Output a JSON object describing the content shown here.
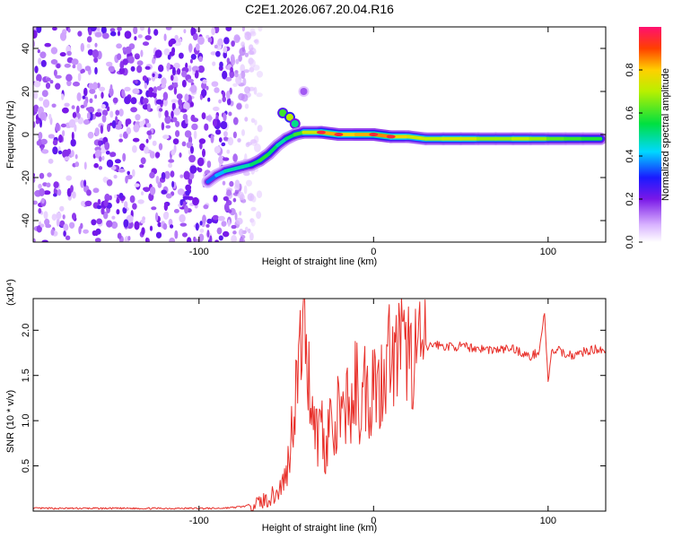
{
  "chart_data": [
    {
      "type": "heatmap",
      "title": "C2E1.2026.067.20.04.R16",
      "xlabel": "Height of straight line (km)",
      "ylabel": "Frequency (Hz)",
      "xlim": [
        -195,
        133
      ],
      "ylim": [
        -50,
        50
      ],
      "xticks": [
        -100,
        0,
        100
      ],
      "xtick_labels": [
        "-100",
        "0",
        "100"
      ],
      "yticks": [
        -40,
        -20,
        0,
        20,
        40
      ],
      "ytick_labels": [
        "-40",
        "-20",
        "0",
        "20",
        "40"
      ],
      "colorbar": {
        "label": "Normalized spectral amplitude",
        "range": [
          0,
          1
        ],
        "ticks": [
          0,
          0.2,
          0.4,
          0.6,
          0.8
        ],
        "tick_labels": [
          "0.0",
          "0.2",
          "0.4",
          "0.6",
          "0.8"
        ]
      },
      "noise_region_x": [
        -195,
        -65
      ],
      "signal_track": [
        {
          "x": -95,
          "y": -22,
          "amp": 0.35
        },
        {
          "x": -90,
          "y": -19,
          "amp": 0.35
        },
        {
          "x": -85,
          "y": -17,
          "amp": 0.45
        },
        {
          "x": -80,
          "y": -16,
          "amp": 0.5
        },
        {
          "x": -75,
          "y": -15,
          "amp": 0.45
        },
        {
          "x": -70,
          "y": -14,
          "amp": 0.5
        },
        {
          "x": -65,
          "y": -12,
          "amp": 0.55
        },
        {
          "x": -60,
          "y": -9,
          "amp": 0.6
        },
        {
          "x": -55,
          "y": -5,
          "amp": 0.45
        },
        {
          "x": -50,
          "y": -2,
          "amp": 0.5
        },
        {
          "x": -45,
          "y": 0,
          "amp": 0.55
        },
        {
          "x": -40,
          "y": 1,
          "amp": 0.65
        },
        {
          "x": -30,
          "y": 1,
          "amp": 0.8
        },
        {
          "x": -20,
          "y": 0,
          "amp": 0.85
        },
        {
          "x": -10,
          "y": 0,
          "amp": 0.75
        },
        {
          "x": 0,
          "y": 0,
          "amp": 0.9
        },
        {
          "x": 10,
          "y": -1,
          "amp": 0.8
        },
        {
          "x": 20,
          "y": -1,
          "amp": 0.75
        },
        {
          "x": 30,
          "y": -2,
          "amp": 0.7
        },
        {
          "x": 40,
          "y": -2,
          "amp": 0.7
        },
        {
          "x": 50,
          "y": -2,
          "amp": 0.75
        },
        {
          "x": 60,
          "y": -2,
          "amp": 0.7
        },
        {
          "x": 70,
          "y": -2,
          "amp": 0.65
        },
        {
          "x": 80,
          "y": -2,
          "amp": 0.7
        },
        {
          "x": 90,
          "y": -2,
          "amp": 0.7
        },
        {
          "x": 100,
          "y": -2,
          "amp": 0.65
        },
        {
          "x": 110,
          "y": -2,
          "amp": 0.6
        },
        {
          "x": 120,
          "y": -2,
          "amp": 0.6
        },
        {
          "x": 130,
          "y": -2,
          "amp": 0.55
        }
      ],
      "branch_track": [
        {
          "x": -52,
          "y": 10,
          "amp": 0.6
        },
        {
          "x": -48,
          "y": 8,
          "amp": 0.7
        },
        {
          "x": -45,
          "y": 5,
          "amp": 0.5
        },
        {
          "x": -40,
          "y": 20,
          "amp": 0.15
        }
      ]
    },
    {
      "type": "line",
      "xlabel": "Height of straight line (km)",
      "ylabel": "SNR (10 * v/v)",
      "y_multiplier": "(x10⁴)",
      "xlim": [
        -195,
        133
      ],
      "ylim": [
        0,
        2.35
      ],
      "xticks": [
        -100,
        0,
        100
      ],
      "xtick_labels": [
        "-100",
        "0",
        "100"
      ],
      "yticks": [
        0.5,
        1.0,
        1.5,
        2.0
      ],
      "ytick_labels": [
        "0.5",
        "1.0",
        "1.5",
        "2.0"
      ],
      "color": "#e8302a",
      "series": [
        {
          "name": "SNR",
          "x": [
            -195,
            -180,
            -160,
            -140,
            -120,
            -100,
            -90,
            -80,
            -75,
            -70,
            -65,
            -60,
            -55,
            -50,
            -48,
            -45,
            -42,
            -40,
            -38,
            -35,
            -32,
            -30,
            -28,
            -25,
            -22,
            -20,
            -18,
            -15,
            -12,
            -10,
            -8,
            -5,
            -2,
            0,
            3,
            5,
            8,
            10,
            12,
            15,
            18,
            20,
            22,
            25,
            28,
            30,
            35,
            40,
            50,
            60,
            70,
            80,
            85,
            90,
            95,
            98,
            100,
            102,
            105,
            110,
            115,
            120,
            125,
            130,
            133
          ],
          "y": [
            0.03,
            0.03,
            0.03,
            0.03,
            0.03,
            0.03,
            0.03,
            0.04,
            0.05,
            0.07,
            0.1,
            0.14,
            0.2,
            0.4,
            0.7,
            1.3,
            1.7,
            2.35,
            1.6,
            1.2,
            0.8,
            1.1,
            0.6,
            1.05,
            0.7,
            1.2,
            0.9,
            1.3,
            1.0,
            1.5,
            1.1,
            1.4,
            1.2,
            1.6,
            1.3,
            1.55,
            1.7,
            1.9,
            1.55,
            1.95,
            1.65,
            1.85,
            1.65,
            1.82,
            1.72,
            1.8,
            1.85,
            1.82,
            1.82,
            1.8,
            1.78,
            1.8,
            1.75,
            1.7,
            1.78,
            2.2,
            1.4,
            1.75,
            1.78,
            1.74,
            1.72,
            1.76,
            1.78,
            1.8,
            1.77
          ]
        }
      ]
    }
  ]
}
